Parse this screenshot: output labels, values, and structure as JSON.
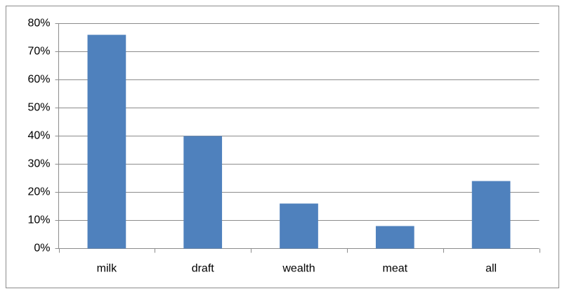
{
  "chart_data": {
    "type": "bar",
    "categories": [
      "milk",
      "draft",
      "wealth",
      "meat",
      "all"
    ],
    "values": [
      76,
      40,
      16,
      8,
      24
    ],
    "color": "#4f81bd",
    "ylim": [
      0,
      80
    ],
    "yticks": [
      {
        "value": 0,
        "label": "0%"
      },
      {
        "value": 10,
        "label": "10%"
      },
      {
        "value": 20,
        "label": "20%"
      },
      {
        "value": 30,
        "label": "30%"
      },
      {
        "value": 40,
        "label": "40%"
      },
      {
        "value": 50,
        "label": "50%"
      },
      {
        "value": 60,
        "label": "60%"
      },
      {
        "value": 70,
        "label": "70%"
      },
      {
        "value": 80,
        "label": "80%"
      }
    ],
    "grid": true
  }
}
